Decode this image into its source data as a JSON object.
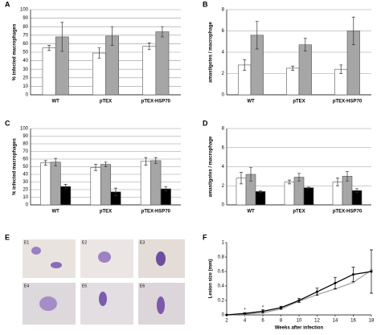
{
  "chart_data": [
    {
      "type": "bar",
      "label": "A",
      "ylabel": "% infected macrophages",
      "categories": [
        "WT",
        "pTEX",
        "pTEX-HSP70"
      ],
      "series": [
        {
          "color": "#ffffff",
          "values": [
            55,
            49,
            57
          ],
          "errors": [
            3,
            6,
            4
          ]
        },
        {
          "color": "#a6a6a6",
          "values": [
            68,
            69,
            74
          ],
          "errors": [
            17,
            11,
            6
          ]
        }
      ],
      "ylim": [
        0,
        100
      ],
      "yticks": [
        0,
        10,
        20,
        30,
        40,
        50,
        60,
        70,
        80,
        90,
        100
      ],
      "grid": true
    },
    {
      "type": "bar",
      "label": "B",
      "ylabel": "amastigotes / macrophage",
      "categories": [
        "WT",
        "pTEX",
        "pTEX-HSP70"
      ],
      "series": [
        {
          "color": "#ffffff",
          "values": [
            2.8,
            2.5,
            2.4
          ],
          "errors": [
            0.5,
            0.2,
            0.4
          ]
        },
        {
          "color": "#a6a6a6",
          "values": [
            5.6,
            4.7,
            6.0
          ],
          "errors": [
            1.3,
            0.6,
            1.3
          ]
        }
      ],
      "ylim": [
        0,
        8
      ],
      "yticks": [
        0,
        2,
        4,
        6,
        8
      ],
      "grid": true
    },
    {
      "type": "bar",
      "label": "C",
      "ylabel": "% infected macrophages",
      "categories": [
        "WT",
        "pTEX",
        "pTEX-HSP70"
      ],
      "series": [
        {
          "color": "#ffffff",
          "values": [
            55,
            49,
            57
          ],
          "errors": [
            3,
            4,
            5
          ]
        },
        {
          "color": "#a6a6a6",
          "values": [
            56,
            53,
            58
          ],
          "errors": [
            5,
            3,
            4
          ]
        },
        {
          "color": "#000000",
          "values": [
            24,
            17,
            21
          ],
          "errors": [
            3,
            5,
            3
          ]
        }
      ],
      "ylim": [
        0,
        100
      ],
      "yticks": [
        0,
        10,
        20,
        30,
        40,
        50,
        60,
        70,
        80,
        90,
        100
      ],
      "grid": true
    },
    {
      "type": "bar",
      "label": "D",
      "ylabel": "amastigotes / macrophage",
      "categories": [
        "WT",
        "pTEX",
        "pTEX-HSP70"
      ],
      "series": [
        {
          "color": "#ffffff",
          "values": [
            2.8,
            2.4,
            2.4
          ],
          "errors": [
            0.6,
            0.2,
            0.4
          ]
        },
        {
          "color": "#a6a6a6",
          "values": [
            3.2,
            2.9,
            3.0
          ],
          "errors": [
            0.7,
            0.4,
            0.5
          ]
        },
        {
          "color": "#000000",
          "values": [
            1.4,
            1.8,
            1.5
          ],
          "errors": [
            0.1,
            0.05,
            0.2
          ]
        }
      ],
      "ylim": [
        0,
        8
      ],
      "yticks": [
        0,
        2,
        4,
        6,
        8
      ],
      "grid": true
    },
    {
      "type": "line",
      "label": "F",
      "xlabel": "Weeks after infection",
      "ylabel": "Lesion size (mm)",
      "x": [
        2,
        4,
        6,
        8,
        10,
        12,
        14,
        16,
        18
      ],
      "series": [
        {
          "color": "#000000",
          "values": [
            0,
            0.02,
            0.05,
            0.1,
            0.2,
            0.32,
            0.44,
            0.56,
            0.6
          ],
          "errors": [
            0,
            0.01,
            0.02,
            0.02,
            0.03,
            0.05,
            0.08,
            0.1,
            0.3
          ]
        },
        {
          "color": "#a6a6a6",
          "values": [
            0,
            0.01,
            0.03,
            0.08,
            0.19,
            0.28,
            0.36,
            0.45,
            0.62
          ]
        }
      ],
      "xlim": [
        2,
        18
      ],
      "xticks": [
        2,
        4,
        6,
        8,
        10,
        12,
        14,
        16,
        18
      ],
      "ylim": [
        0,
        1
      ],
      "yticks": [
        0,
        0.2,
        0.4,
        0.6,
        0.8,
        1
      ],
      "grid": false,
      "annotations": [
        {
          "text": "*",
          "x": 4,
          "y": 0.07
        },
        {
          "text": "*",
          "x": 6,
          "y": 0.1
        }
      ]
    }
  ],
  "panel_e": {
    "label": "E",
    "images": [
      "E1",
      "E2",
      "E3",
      "E4",
      "E5",
      "E6"
    ]
  }
}
